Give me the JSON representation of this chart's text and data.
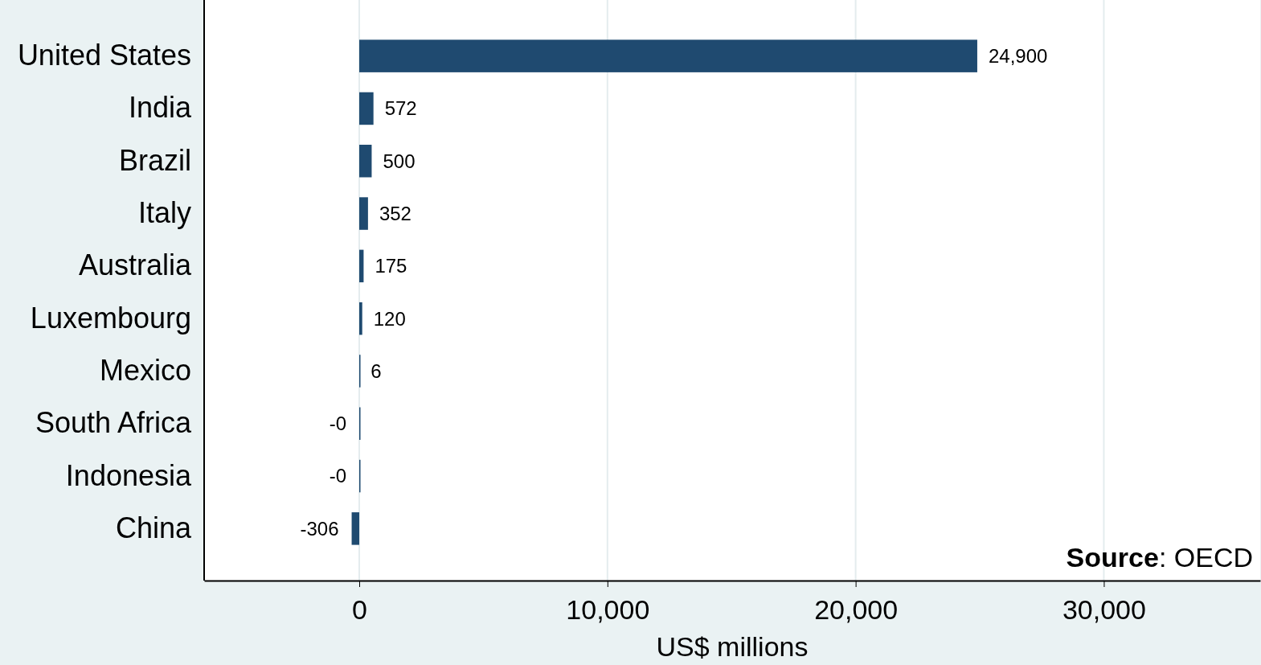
{
  "chart_data": {
    "type": "bar",
    "orientation": "horizontal",
    "xlabel": "US$ millions",
    "categories": [
      "United States",
      "India",
      "Brazil",
      "Italy",
      "Australia",
      "Luxembourg",
      "Mexico",
      "South Africa",
      "Indonesia",
      "China"
    ],
    "values": [
      24900,
      572,
      500,
      352,
      175,
      120,
      6,
      -0.3,
      -0.3,
      -306
    ],
    "value_labels": [
      "24,900",
      "572",
      "500",
      "352",
      "175",
      "120",
      "6",
      "-0",
      "-0",
      "-306"
    ],
    "color": "#1f4a70",
    "xlim": [
      -6250,
      36300
    ],
    "xticks": [
      {
        "value": 0,
        "label": "0"
      },
      {
        "value": 10000,
        "label": "10,000"
      },
      {
        "value": 20000,
        "label": "20,000"
      },
      {
        "value": 30000,
        "label": "30,000"
      }
    ],
    "grid": "x",
    "annotations": [
      "Source: OECD"
    ]
  }
}
